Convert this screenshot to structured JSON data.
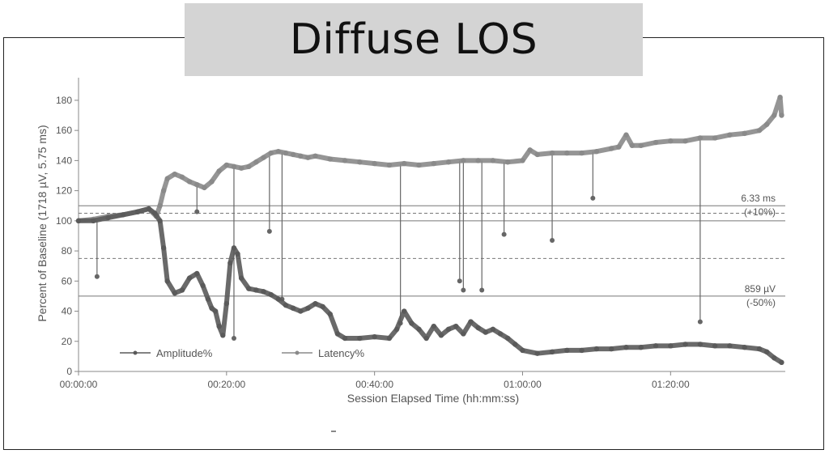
{
  "page": {
    "title": "Diffuse LOS"
  },
  "chart_data": {
    "type": "line",
    "title": "Diffuse LOS",
    "xlabel": "Session Elapsed Time (hh:mm:ss)",
    "ylabel": "Percent of Baseline (1718 µV, 5.75 ms)",
    "xlim_minutes": [
      0,
      95.5
    ],
    "ylim": [
      0,
      195
    ],
    "x_ticks": [
      {
        "minute": 0,
        "label": "00:00:00"
      },
      {
        "minute": 20,
        "label": "00:20:00"
      },
      {
        "minute": 40,
        "label": "00:40:00"
      },
      {
        "minute": 60,
        "label": "01:00:00"
      },
      {
        "minute": 80,
        "label": "01:20:00"
      }
    ],
    "y_ticks": [
      0,
      20,
      40,
      60,
      80,
      100,
      120,
      140,
      160,
      180
    ],
    "legend": [
      "Amplitude%",
      "Latency%"
    ],
    "legend_position": "bottom-left inside",
    "reference_lines": [
      {
        "y": 110,
        "style": "solid",
        "label1": "6.33 ms",
        "label2": "(+10%)"
      },
      {
        "y": 105,
        "style": "dashed"
      },
      {
        "y": 100,
        "style": "solid"
      },
      {
        "y": 75,
        "style": "dashed"
      },
      {
        "y": 50,
        "style": "solid",
        "label1": "859 µV",
        "label2": "(-50%)"
      }
    ],
    "series": [
      {
        "name": "Latency%",
        "color": "#8a8a8a",
        "points": [
          [
            0,
            100
          ],
          [
            2,
            101
          ],
          [
            4,
            103
          ],
          [
            6,
            104
          ],
          [
            8,
            106
          ],
          [
            9.5,
            108
          ],
          [
            10.5,
            103
          ],
          [
            11,
            110
          ],
          [
            11.5,
            120
          ],
          [
            12,
            128
          ],
          [
            13,
            131
          ],
          [
            14,
            129
          ],
          [
            15,
            126
          ],
          [
            16,
            124
          ],
          [
            17,
            122
          ],
          [
            18,
            126
          ],
          [
            19,
            133
          ],
          [
            20,
            137
          ],
          [
            21,
            136
          ],
          [
            22,
            135
          ],
          [
            23,
            136
          ],
          [
            24,
            139
          ],
          [
            25,
            142
          ],
          [
            26,
            145
          ],
          [
            27,
            146
          ],
          [
            28,
            145
          ],
          [
            29,
            144
          ],
          [
            30,
            143
          ],
          [
            31,
            142
          ],
          [
            32,
            143
          ],
          [
            34,
            141
          ],
          [
            36,
            140
          ],
          [
            38,
            139
          ],
          [
            40,
            138
          ],
          [
            42,
            137
          ],
          [
            44,
            138
          ],
          [
            46,
            137
          ],
          [
            48,
            138
          ],
          [
            50,
            139
          ],
          [
            52,
            140
          ],
          [
            54,
            140
          ],
          [
            56,
            140
          ],
          [
            58,
            139
          ],
          [
            60,
            140
          ],
          [
            61,
            147
          ],
          [
            62,
            144
          ],
          [
            64,
            145
          ],
          [
            66,
            145
          ],
          [
            68,
            145
          ],
          [
            70,
            146
          ],
          [
            72,
            148
          ],
          [
            73,
            149
          ],
          [
            74,
            157
          ],
          [
            74.8,
            150
          ],
          [
            76,
            150
          ],
          [
            78,
            152
          ],
          [
            80,
            153
          ],
          [
            82,
            153
          ],
          [
            84,
            155
          ],
          [
            86,
            155
          ],
          [
            88,
            157
          ],
          [
            90,
            158
          ],
          [
            92,
            160
          ],
          [
            93,
            164
          ],
          [
            94,
            170
          ],
          [
            94.8,
            182
          ],
          [
            95,
            170
          ]
        ]
      },
      {
        "name": "Amplitude%",
        "color": "#5a5a5a",
        "points": [
          [
            0,
            100
          ],
          [
            2,
            100
          ],
          [
            4,
            102
          ],
          [
            6,
            104
          ],
          [
            8,
            106
          ],
          [
            9.5,
            108
          ],
          [
            10.3,
            105
          ],
          [
            11,
            100
          ],
          [
            11.5,
            82
          ],
          [
            12,
            60
          ],
          [
            13,
            52
          ],
          [
            14,
            54
          ],
          [
            15,
            62
          ],
          [
            16,
            65
          ],
          [
            16.8,
            57
          ],
          [
            17.5,
            48
          ],
          [
            18,
            42
          ],
          [
            18.5,
            40
          ],
          [
            19,
            30
          ],
          [
            19.5,
            24
          ],
          [
            20,
            45
          ],
          [
            20.5,
            72
          ],
          [
            21,
            82
          ],
          [
            21.5,
            78
          ],
          [
            22,
            62
          ],
          [
            23,
            55
          ],
          [
            24,
            54
          ],
          [
            25,
            53
          ],
          [
            26,
            51
          ],
          [
            27,
            48
          ],
          [
            28,
            44
          ],
          [
            29,
            42
          ],
          [
            30,
            40
          ],
          [
            31,
            42
          ],
          [
            32,
            45
          ],
          [
            33,
            43
          ],
          [
            34,
            38
          ],
          [
            35,
            25
          ],
          [
            36,
            22
          ],
          [
            38,
            22
          ],
          [
            40,
            23
          ],
          [
            42,
            22
          ],
          [
            43,
            28
          ],
          [
            44,
            40
          ],
          [
            45,
            32
          ],
          [
            46,
            28
          ],
          [
            47,
            22
          ],
          [
            48,
            30
          ],
          [
            49,
            24
          ],
          [
            50,
            28
          ],
          [
            51,
            30
          ],
          [
            52,
            25
          ],
          [
            53,
            33
          ],
          [
            54,
            29
          ],
          [
            55,
            26
          ],
          [
            56,
            28
          ],
          [
            57,
            25
          ],
          [
            58,
            22
          ],
          [
            59,
            18
          ],
          [
            60,
            14
          ],
          [
            62,
            12
          ],
          [
            64,
            13
          ],
          [
            66,
            14
          ],
          [
            68,
            14
          ],
          [
            70,
            15
          ],
          [
            72,
            15
          ],
          [
            74,
            16
          ],
          [
            76,
            16
          ],
          [
            78,
            17
          ],
          [
            80,
            17
          ],
          [
            82,
            18
          ],
          [
            84,
            18
          ],
          [
            86,
            17
          ],
          [
            88,
            17
          ],
          [
            90,
            16
          ],
          [
            92,
            15
          ],
          [
            93,
            13
          ],
          [
            94,
            9
          ],
          [
            95,
            6
          ]
        ]
      },
      {
        "name": "Dropout spikes",
        "color": "#666666",
        "segments": [
          {
            "x": 2.5,
            "from": 100,
            "to": 63
          },
          {
            "x": 16,
            "from": 124,
            "to": 106
          },
          {
            "x": 21,
            "from": 137,
            "to": 22
          },
          {
            "x": 25.8,
            "from": 143,
            "to": 93
          },
          {
            "x": 27.5,
            "from": 146,
            "to": 48
          },
          {
            "x": 43.5,
            "from": 138,
            "to": 32
          },
          {
            "x": 51.5,
            "from": 140,
            "to": 60
          },
          {
            "x": 52,
            "from": 140,
            "to": 54
          },
          {
            "x": 54.5,
            "from": 140,
            "to": 54
          },
          {
            "x": 57.5,
            "from": 139,
            "to": 91
          },
          {
            "x": 64,
            "from": 145,
            "to": 87
          },
          {
            "x": 69.5,
            "from": 146,
            "to": 115
          },
          {
            "x": 84,
            "from": 155,
            "to": 33
          }
        ]
      }
    ]
  }
}
